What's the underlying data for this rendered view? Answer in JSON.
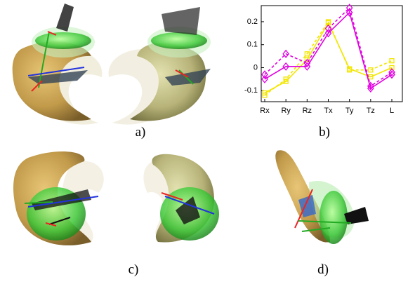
{
  "panels": {
    "labels": [
      "a)",
      "b)",
      "c)",
      "d)"
    ]
  },
  "chart_data": {
    "type": "line",
    "categories": [
      "Rx",
      "Ry",
      "Rz",
      "Tx",
      "Ty",
      "Tz",
      "L"
    ],
    "ylim": [
      -0.148,
      0.27
    ],
    "yticks": [
      -0.1,
      0,
      0.1,
      0.2
    ],
    "series": [
      {
        "color": "#f2e600",
        "dashed": false,
        "marker": "square",
        "values": [
          -0.11,
          -0.06,
          0.035,
          0.195,
          -0.005,
          -0.04,
          0.0
        ]
      },
      {
        "color": "#f2e600",
        "dashed": true,
        "marker": "square",
        "values": [
          -0.12,
          -0.05,
          0.06,
          0.2,
          -0.01,
          -0.01,
          0.03
        ]
      },
      {
        "color": "#e000e0",
        "dashed": false,
        "marker": "diamond",
        "values": [
          -0.05,
          0.005,
          0.005,
          0.15,
          0.24,
          -0.09,
          -0.03
        ]
      },
      {
        "color": "#e000e0",
        "dashed": true,
        "marker": "diamond",
        "values": [
          -0.03,
          0.06,
          0.02,
          0.17,
          0.26,
          -0.08,
          -0.02
        ]
      }
    ]
  }
}
